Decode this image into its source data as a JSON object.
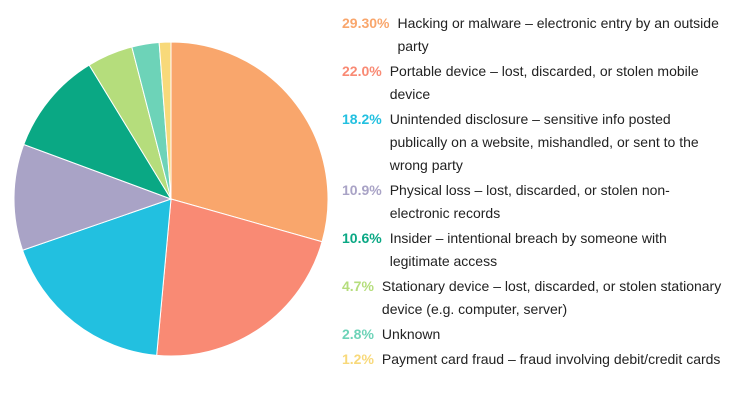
{
  "chart_data": {
    "type": "pie",
    "categories": [
      "Hacking or malware – electronic entry by an outside party",
      "Portable device – lost, discarded, or stolen mobile device",
      "Unintended disclosure – sensitive info posted publically on a website, mishandled, or sent to the wrong party",
      "Physical loss – lost, discarded, or stolen non-electronic records",
      "Insider – intentional breach by someone with legitimate access",
      "Stationary device – lost, discarded, or stolen stationary device (e.g. computer, server)",
      "Unknown",
      "Payment card fraud – fraud involving debit/credit cards"
    ],
    "values": [
      29.3,
      22.0,
      18.2,
      10.9,
      10.6,
      4.7,
      2.8,
      1.2
    ],
    "value_labels": [
      "29.30%",
      "22.0%",
      "18.2%",
      "10.9%",
      "10.6%",
      "4.7%",
      "2.8%",
      "1.2%"
    ],
    "colors": [
      "#f9a66c",
      "#f98a74",
      "#22c0e0",
      "#a9a3c6",
      "#0aa884",
      "#b5dd7c",
      "#6dd3b8",
      "#f8d97a"
    ]
  }
}
